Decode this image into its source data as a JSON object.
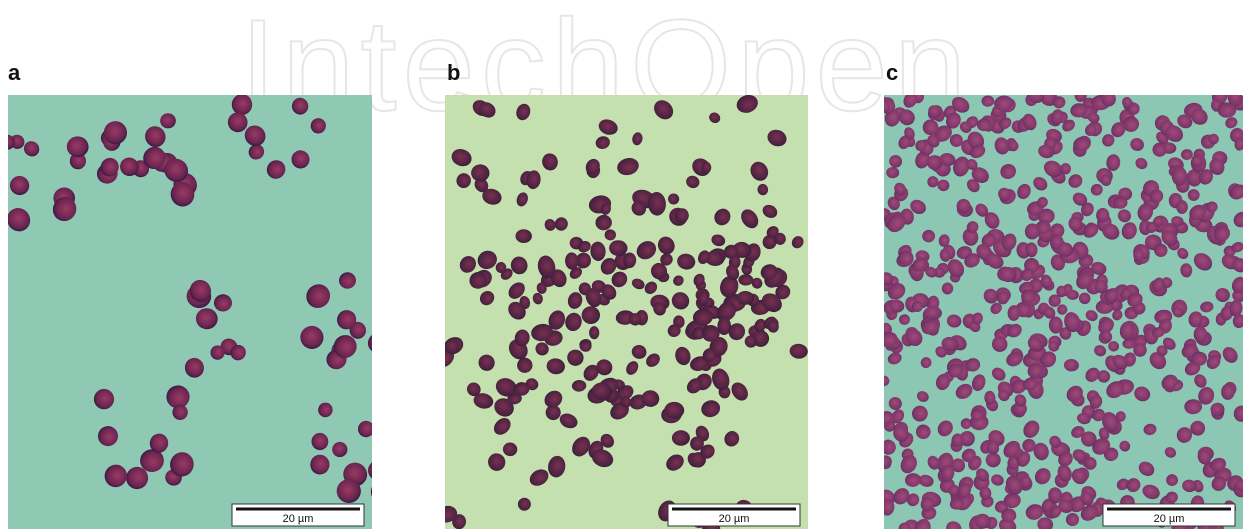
{
  "watermark": "IntechOpen",
  "panels": [
    {
      "label": "a",
      "scale_bar": "20 µm"
    },
    {
      "label": "b",
      "scale_bar": "20 µm"
    },
    {
      "label": "c",
      "scale_bar": "20 µm"
    }
  ]
}
